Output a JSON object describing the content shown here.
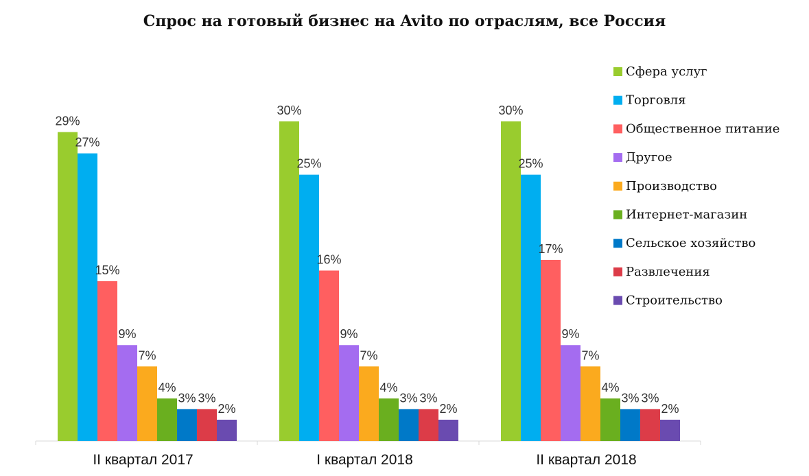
{
  "chart_data": {
    "type": "bar",
    "title": "Спрос на готовый бизнес на Avito по отраслям, все Россия",
    "categories": [
      "II квартал 2017",
      "I квартал 2018",
      "II квартал 2018"
    ],
    "series": [
      {
        "name": "Сфера услуг",
        "color": "#99cc2e",
        "values": [
          29,
          30,
          30
        ]
      },
      {
        "name": "Торговля",
        "color": "#00aef0",
        "values": [
          27,
          25,
          25
        ]
      },
      {
        "name": "Общественное питание",
        "color": "#ff5f60",
        "values": [
          15,
          16,
          17
        ]
      },
      {
        "name": "Другое",
        "color": "#a46cf0",
        "values": [
          9,
          9,
          9
        ]
      },
      {
        "name": "Производство",
        "color": "#fbaa1e",
        "values": [
          7,
          7,
          7
        ]
      },
      {
        "name": "Интернет-магазин",
        "color": "#6aaf1f",
        "values": [
          4,
          4,
          4
        ]
      },
      {
        "name": "Сельское хозяйство",
        "color": "#0079c8",
        "values": [
          3,
          3,
          3
        ]
      },
      {
        "name": "Развлечения",
        "color": "#dc3c48",
        "values": [
          3,
          3,
          3
        ]
      },
      {
        "name": "Строительство",
        "color": "#6a4bb0",
        "values": [
          2,
          2,
          2
        ]
      }
    ],
    "value_suffix": "%",
    "xlabel": "",
    "ylabel": "",
    "ylim": [
      0,
      30
    ],
    "grid": false,
    "legend": "right",
    "data_labels": true
  }
}
